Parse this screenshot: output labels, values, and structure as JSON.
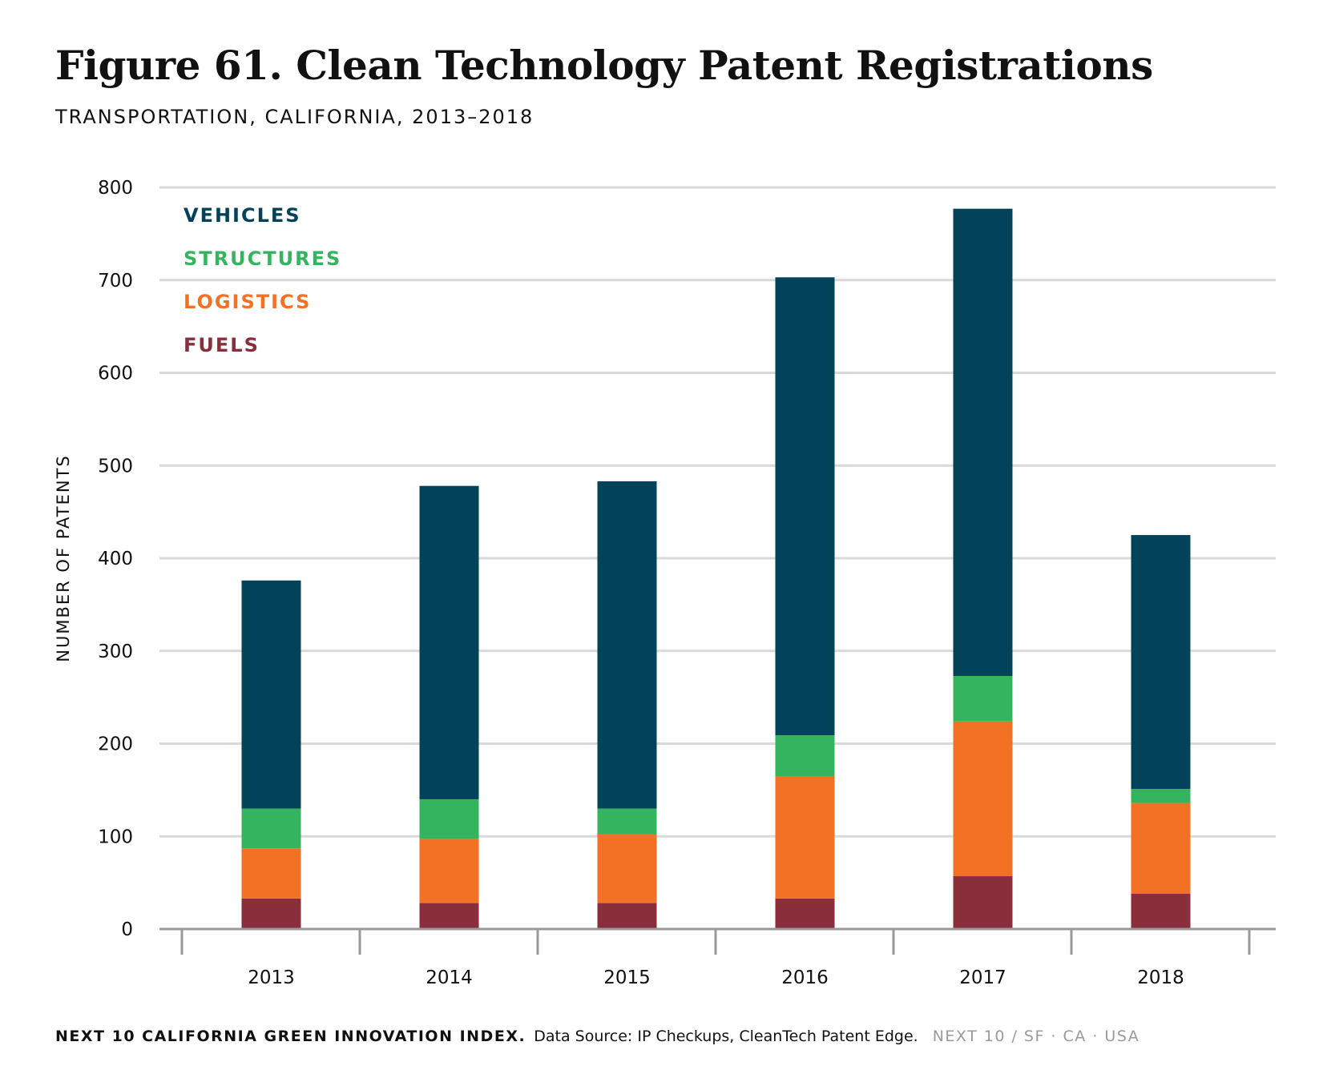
{
  "title": "Figure 61. Clean Technology Patent Registrations",
  "subtitle": "TRANSPORTATION, CALIFORNIA, 2013–2018",
  "footer": {
    "org": "NEXT 10 CALIFORNIA GREEN INNOVATION INDEX.",
    "source": "Data Source: IP Checkups, CleanTech Patent Edge.",
    "brand": "NEXT 10  /  SF · CA · USA"
  },
  "colors": {
    "vehicles": "#03435a",
    "structures": "#35b45f",
    "logistics": "#f37124",
    "fuels": "#8b2e3c",
    "grid": "#d9d9d9",
    "axis": "#999999"
  },
  "chart_data": {
    "type": "bar",
    "stacked": true,
    "categories": [
      "2013",
      "2014",
      "2015",
      "2016",
      "2017",
      "2018"
    ],
    "series": [
      {
        "name": "FUELS",
        "color_key": "fuels",
        "values": [
          33,
          28,
          28,
          33,
          57,
          38
        ]
      },
      {
        "name": "LOGISTICS",
        "color_key": "logistics",
        "values": [
          54,
          69,
          74,
          132,
          167,
          98
        ]
      },
      {
        "name": "STRUCTURES",
        "color_key": "structures",
        "values": [
          43,
          43,
          28,
          44,
          49,
          15
        ]
      },
      {
        "name": "VEHICLES",
        "color_key": "vehicles",
        "values": [
          246,
          338,
          353,
          494,
          504,
          274
        ]
      }
    ],
    "legend_order": [
      "VEHICLES",
      "STRUCTURES",
      "LOGISTICS",
      "FUELS"
    ],
    "legend_position": "top-left",
    "ylabel": "NUMBER OF PATENTS",
    "xlabel": "",
    "ylim": [
      0,
      800
    ],
    "yticks": [
      0,
      100,
      200,
      300,
      400,
      500,
      600,
      700,
      800
    ],
    "grid": true
  }
}
